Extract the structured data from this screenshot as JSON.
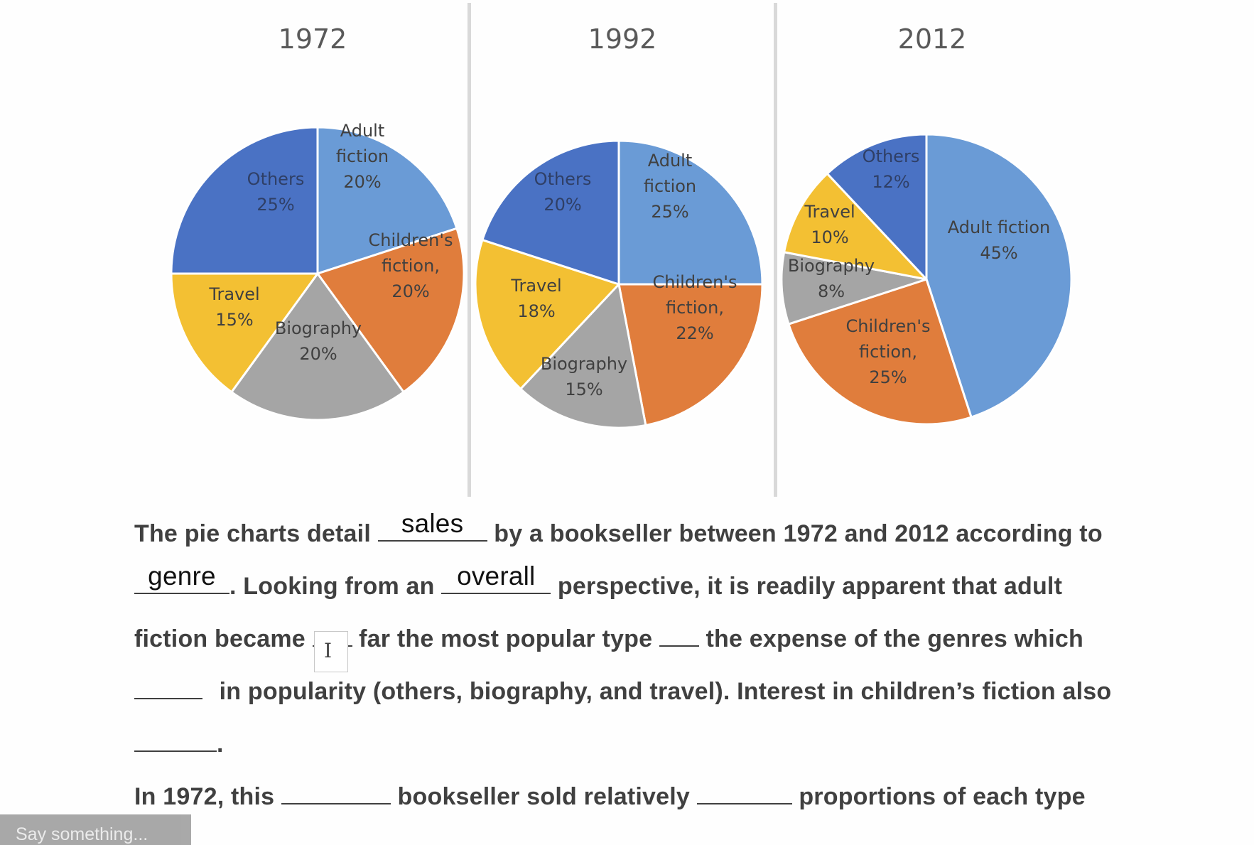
{
  "chart_data": [
    {
      "type": "pie",
      "title": "1972",
      "slices": [
        {
          "label": "Adult fiction",
          "label_lines": [
            "Adult",
            "fiction"
          ],
          "value": 20,
          "value_label": "20%",
          "color": "#6a9bd6"
        },
        {
          "label": "Children's fiction",
          "label_lines": [
            "Children's",
            "fiction,"
          ],
          "value": 20,
          "value_label": "20%",
          "color": "#e07d3c"
        },
        {
          "label": "Biography",
          "label_lines": [
            "Biography"
          ],
          "value": 20,
          "value_label": "20%",
          "color": "#a5a5a5"
        },
        {
          "label": "Travel",
          "label_lines": [
            "Travel"
          ],
          "value": 15,
          "value_label": "15%",
          "color": "#f3c033"
        },
        {
          "label": "Others",
          "label_lines": [
            "Others"
          ],
          "value": 25,
          "value_label": "25%",
          "color": "#4a72c4"
        }
      ]
    },
    {
      "type": "pie",
      "title": "1992",
      "slices": [
        {
          "label": "Adult fiction",
          "label_lines": [
            "Adult",
            "fiction"
          ],
          "value": 25,
          "value_label": "25%",
          "color": "#6a9bd6"
        },
        {
          "label": "Children's fiction",
          "label_lines": [
            "Children's",
            "fiction,"
          ],
          "value": 22,
          "value_label": "22%",
          "color": "#e07d3c"
        },
        {
          "label": "Biography",
          "label_lines": [
            "Biography"
          ],
          "value": 15,
          "value_label": "15%",
          "color": "#a5a5a5"
        },
        {
          "label": "Travel",
          "label_lines": [
            "Travel"
          ],
          "value": 18,
          "value_label": "18%",
          "color": "#f3c033"
        },
        {
          "label": "Others",
          "label_lines": [
            "Others"
          ],
          "value": 20,
          "value_label": "20%",
          "color": "#4a72c4"
        }
      ]
    },
    {
      "type": "pie",
      "title": "2012",
      "slices": [
        {
          "label": "Adult fiction",
          "label_lines": [
            "Adult fiction"
          ],
          "value": 45,
          "value_label": "45%",
          "color": "#6a9bd6"
        },
        {
          "label": "Children's fiction",
          "label_lines": [
            "Children's",
            "fiction,"
          ],
          "value": 25,
          "value_label": "25%",
          "color": "#e07d3c"
        },
        {
          "label": "Biography",
          "label_lines": [
            "Biography"
          ],
          "value": 8,
          "value_label": "8%",
          "color": "#a5a5a5"
        },
        {
          "label": "Travel",
          "label_lines": [
            "Travel"
          ],
          "value": 10,
          "value_label": "10%",
          "color": "#f3c033"
        },
        {
          "label": "Others",
          "label_lines": [
            "Others"
          ],
          "value": 12,
          "value_label": "12%",
          "color": "#4a72c4"
        }
      ]
    }
  ],
  "exercise": {
    "l1_a": "The pie charts detail ",
    "l1_fill": "sales",
    "l1_b": " by a bookseller between 1972 and 2012 according to",
    "l2_fill": "genre",
    "l2_a": ". Looking from an ",
    "l2_fill2": "overall",
    "l2_b": " perspective, it is readily apparent that adult",
    "l3_a": "fiction became ",
    "l3_b": " far the most popular type ",
    "l3_c": " the expense of the genres which",
    "l4_a": " in popularity (others, biography, and travel). Interest in children’s fiction also",
    "l5_a": ".",
    "l6_a": "In 1972, this ",
    "l6_b": " bookseller sold relatively ",
    "l6_c": " proportions of each type"
  },
  "chat": {
    "placeholder": "Say something..."
  }
}
